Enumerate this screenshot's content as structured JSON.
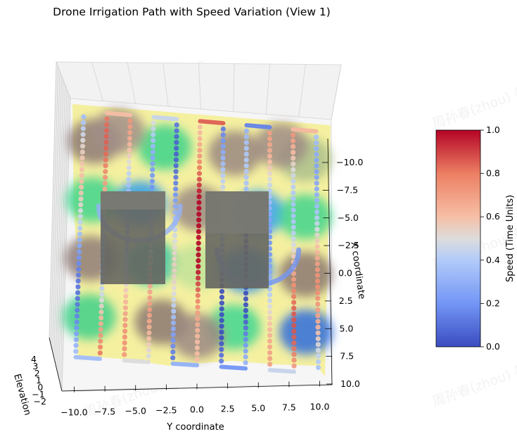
{
  "chart_data": {
    "type": "scatter",
    "title": "Drone Irrigation Path with Speed Variation (View 1)",
    "xlabel": "Y coordinate",
    "ylabel": "X coordinate",
    "zlabel": "Elevation",
    "x_ticks": [
      "−10.0",
      "−7.5",
      "−5.0",
      "−2.5",
      "0.0",
      "2.5",
      "5.0",
      "7.5",
      "10.0"
    ],
    "y_ticks": [
      "−10.0",
      "−7.5",
      "−5.0",
      "−2.5",
      "0.0",
      "2.5",
      "5.0",
      "7.5",
      "10.0"
    ],
    "z_ticks": [
      "−2",
      "−1",
      "0",
      "1",
      "2",
      "3",
      "4"
    ],
    "xlim": [
      -11,
      11
    ],
    "ylim": [
      -11,
      11
    ],
    "colorbar": {
      "label": "Speed (Time Units)",
      "colormap": "coolwarm",
      "range": [
        0.0,
        1.0
      ],
      "ticks": [
        "0.0",
        "0.2",
        "0.4",
        "0.6",
        "0.8",
        "1.0"
      ]
    },
    "terrain_colormap": "terrain",
    "obstacles": [
      {
        "y_center": -5.0,
        "x_center": -3.0,
        "color": "#5e5e58"
      },
      {
        "y_center": 5.0,
        "x_center": 0.0,
        "color": "#5e5e58"
      }
    ],
    "path_rows_y": [
      -10,
      -8,
      -6,
      -4,
      -2,
      0,
      2,
      4,
      6,
      8,
      10
    ],
    "path_speed_per_row": [
      0.35,
      0.6,
      0.5,
      0.45,
      0.3,
      0.85,
      0.2,
      0.15,
      0.45,
      0.62,
      0.5
    ]
  },
  "watermark": "周孙春(zhou) 美信"
}
